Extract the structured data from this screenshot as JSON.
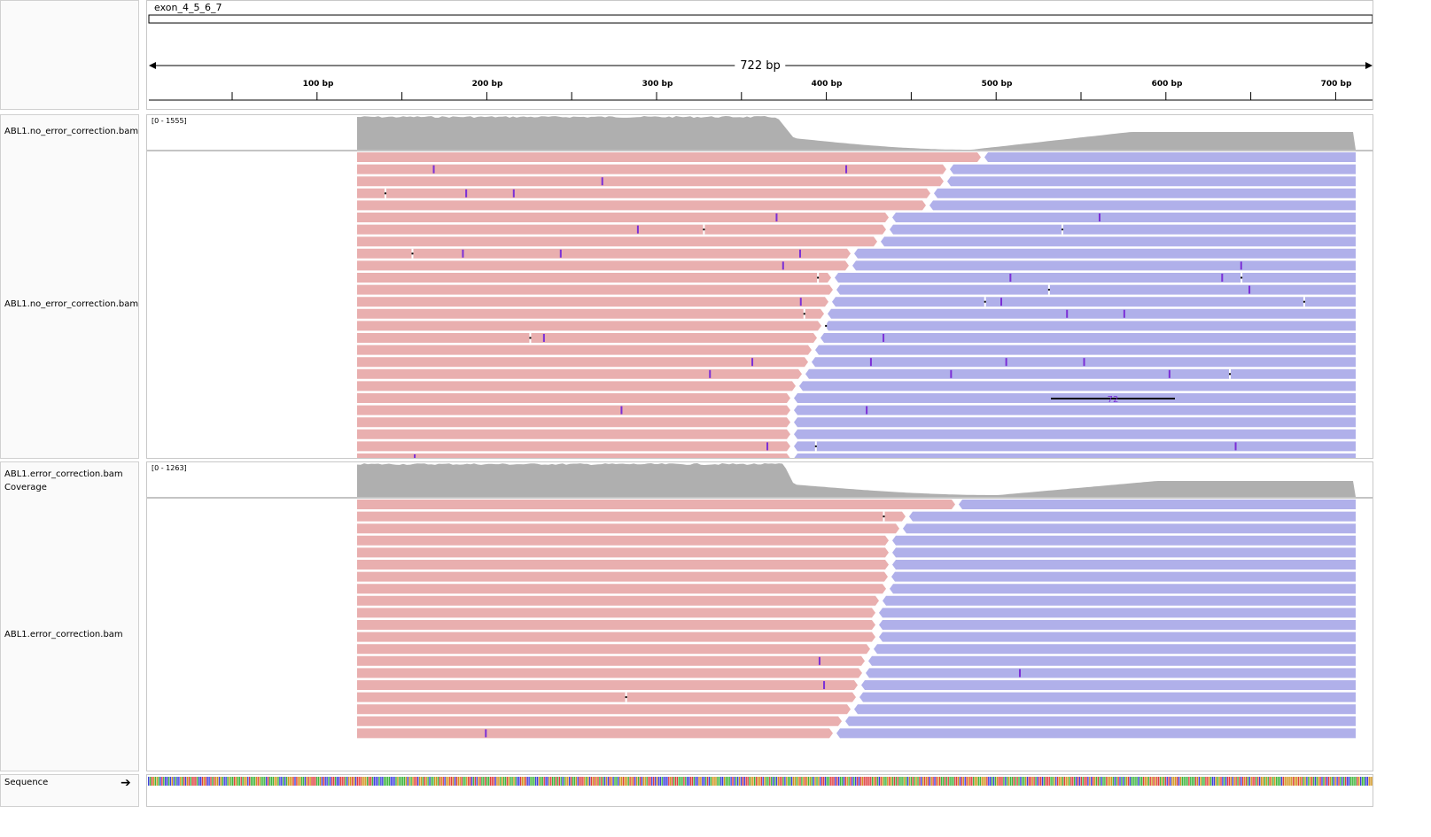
{
  "ruler": {
    "locus": "exon_4_5_6_7",
    "length_label": "722 bp",
    "ticks": [
      "100 bp",
      "200 bp",
      "300 bp",
      "400 bp",
      "500 bp",
      "600 bp",
      "700 bp"
    ]
  },
  "tracks": [
    {
      "coverage_name": "ABL1.no_error_correction.bam",
      "range": "[0 - 1555]",
      "alignment_name": "ABL1.no_error_correction.bam",
      "deletion_label": "72"
    },
    {
      "coverage_name": "ABL1.error_correction.bam Coverage",
      "range": "[0 - 1263]",
      "alignment_name": "ABL1.error_correction.bam"
    }
  ],
  "sequence": {
    "label": "Sequence",
    "strand_icon": "right-arrow-icon"
  },
  "colors": {
    "forward_read": "#e9afaf",
    "reverse_read": "#b0b0ea",
    "coverage": "#afafaf",
    "insertion": "#7b2fd6",
    "base_A": "#3fb53f",
    "base_C": "#3f3fdf",
    "base_G": "#d1951f",
    "base_T": "#df3f3f"
  }
}
